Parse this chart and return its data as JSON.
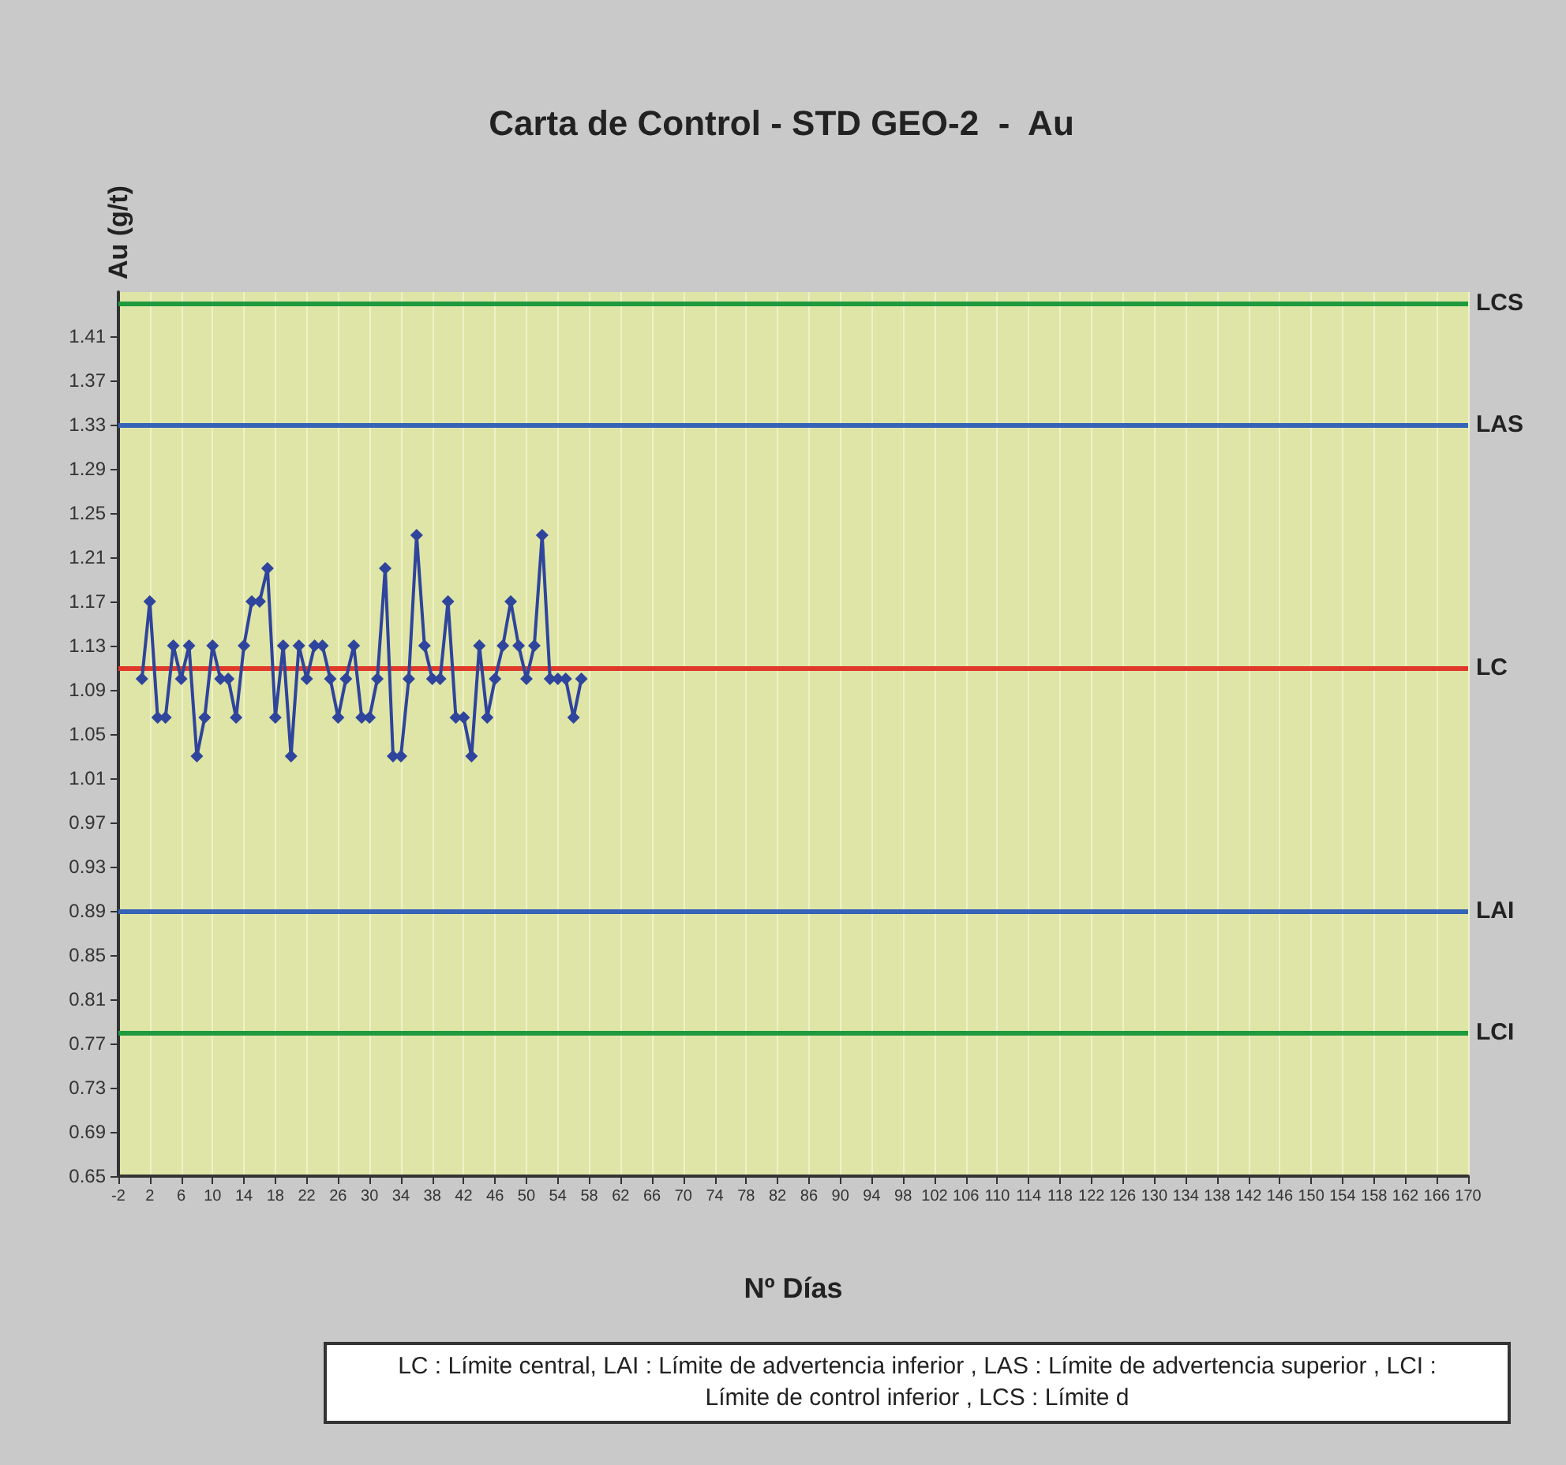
{
  "chart_data": {
    "type": "line",
    "title": "Carta de Control - STD GEO-2  -  Au",
    "xlabel": "Nº Días",
    "ylabel": "Au (g/t)",
    "x": [
      1,
      2,
      3,
      4,
      5,
      6,
      7,
      8,
      9,
      10,
      11,
      12,
      13,
      14,
      15,
      16,
      17,
      18,
      19,
      20,
      21,
      22,
      23,
      24,
      25,
      26,
      27,
      28,
      29,
      30,
      31,
      32,
      33,
      34,
      35,
      36,
      37,
      38,
      39,
      40,
      41,
      42,
      43,
      44,
      45,
      46,
      47,
      48,
      49,
      50,
      51,
      52,
      53,
      54,
      55,
      56,
      57
    ],
    "series": [
      {
        "color": "#2f449c",
        "values": [
          1.1,
          1.17,
          1.065,
          1.065,
          1.13,
          1.1,
          1.13,
          1.03,
          1.065,
          1.13,
          1.1,
          1.1,
          1.065,
          1.13,
          1.17,
          1.17,
          1.2,
          1.065,
          1.13,
          1.03,
          1.13,
          1.1,
          1.13,
          1.13,
          1.1,
          1.065,
          1.1,
          1.13,
          1.065,
          1.065,
          1.1,
          1.2,
          1.03,
          1.03,
          1.1,
          1.23,
          1.13,
          1.1,
          1.1,
          1.17,
          1.065,
          1.065,
          1.03,
          1.13,
          1.065,
          1.1,
          1.13,
          1.17,
          1.13,
          1.1,
          1.13,
          1.23,
          1.1,
          1.1,
          1.1,
          1.065,
          1.1
        ]
      }
    ],
    "marker": "diamond",
    "xlim": [
      -2,
      170
    ],
    "xticks": [
      -2,
      2,
      6,
      10,
      14,
      18,
      22,
      26,
      30,
      34,
      38,
      42,
      46,
      50,
      54,
      58,
      62,
      66,
      70,
      74,
      78,
      82,
      86,
      90,
      94,
      98,
      102,
      106,
      110,
      114,
      118,
      122,
      126,
      130,
      134,
      138,
      142,
      146,
      150,
      154,
      158,
      162,
      166,
      170
    ],
    "ylim": [
      0.65,
      1.45
    ],
    "yticks": [
      0.65,
      0.69,
      0.73,
      0.77,
      0.81,
      0.85,
      0.89,
      0.93,
      0.97,
      1.01,
      1.05,
      1.09,
      1.13,
      1.17,
      1.21,
      1.25,
      1.29,
      1.33,
      1.37,
      1.41
    ],
    "grid": "x",
    "ref_lines": [
      {
        "axis": "y",
        "value": 1.44,
        "label": "LCS",
        "color": "#1f9a3e"
      },
      {
        "axis": "y",
        "value": 1.33,
        "label": "LAS",
        "color": "#3563b8"
      },
      {
        "axis": "y",
        "value": 1.11,
        "label": "LC",
        "color": "#e0392a"
      },
      {
        "axis": "y",
        "value": 0.89,
        "label": "LAI",
        "color": "#3563b8"
      },
      {
        "axis": "y",
        "value": 0.78,
        "label": "LCI",
        "color": "#1f9a3e"
      }
    ],
    "annotations": [
      "LC : Límite central,  LAI : Límite de advertencia inferior ,  LAS : Límite de advertencia superior ,  LCI : Límite de control inferior ,  LCS : Límite d"
    ]
  }
}
